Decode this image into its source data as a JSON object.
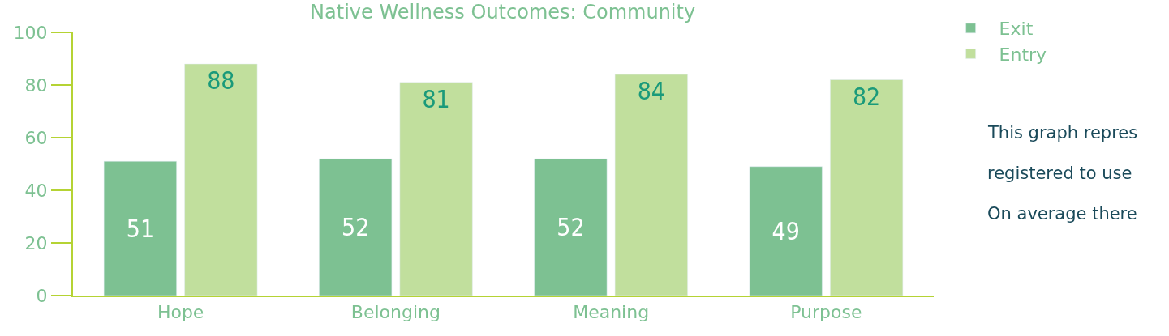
{
  "chart_data": {
    "type": "bar",
    "title": "Native Wellness Outcomes: Community",
    "categories": [
      "Hope",
      "Belonging",
      "Meaning",
      "Purpose"
    ],
    "series": [
      {
        "name": "Exit",
        "color": "#7dc192",
        "values": [
          51,
          52,
          52,
          49
        ]
      },
      {
        "name": "Entry",
        "color": "#c1df9d",
        "values": [
          88,
          81,
          84,
          82
        ]
      }
    ],
    "ylim": [
      0,
      100
    ],
    "yticks": [
      0,
      20,
      40,
      60,
      80,
      100
    ],
    "legend": "top right",
    "data_labels": true,
    "annotations": [
      "This graph repres",
      "registered to use",
      "On average there"
    ]
  }
}
